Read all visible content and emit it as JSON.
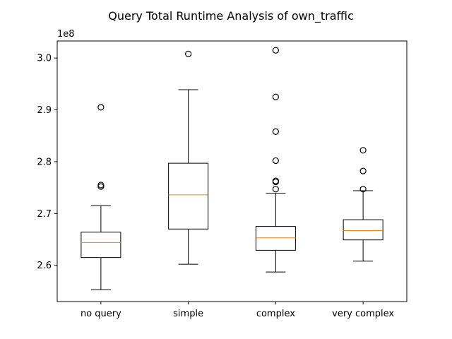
{
  "chart_data": {
    "type": "box",
    "title": "Query Total Runtime Analysis of own_traffic",
    "xlabel": "",
    "ylabel": "",
    "y_offset_label": "1e8",
    "ylim": [
      2.53,
      3.033
    ],
    "y_ticks": [
      2.6,
      2.7,
      2.8,
      2.9,
      3.0
    ],
    "y_tick_labels": [
      "2.6",
      "2.7",
      "2.8",
      "2.9",
      "3.0"
    ],
    "categories": [
      "no query",
      "simple",
      "complex",
      "very complex"
    ],
    "boxes": [
      {
        "category": "no query",
        "whislo": 2.553,
        "q1": 2.615,
        "med": 2.644,
        "q3": 2.664,
        "whishi": 2.715,
        "fliers": [
          2.752,
          2.755,
          2.905
        ]
      },
      {
        "category": "simple",
        "whislo": 2.602,
        "q1": 2.67,
        "med": 2.736,
        "q3": 2.797,
        "whishi": 2.939,
        "fliers": [
          3.008
        ]
      },
      {
        "category": "complex",
        "whislo": 2.587,
        "q1": 2.629,
        "med": 2.653,
        "q3": 2.675,
        "whishi": 2.739,
        "fliers": [
          2.747,
          2.761,
          2.763,
          2.802,
          2.858,
          2.925,
          3.015
        ]
      },
      {
        "category": "very complex",
        "whislo": 2.608,
        "q1": 2.649,
        "med": 2.667,
        "q3": 2.688,
        "whishi": 2.744,
        "fliers": [
          2.747,
          2.782,
          2.822
        ]
      }
    ],
    "colors": {
      "median": "#ff7f0e",
      "box": "#000000",
      "background": "#ffffff"
    },
    "grid": false,
    "legend": "none"
  }
}
